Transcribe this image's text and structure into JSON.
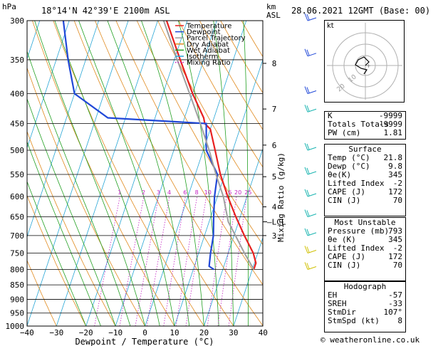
{
  "header": {
    "location": "18°14'N 42°39'E 2100m ASL",
    "datetime": "28.06.2021 12GMT (Base: 00)",
    "left_unit": "hPa",
    "right_unit_1": "km",
    "right_unit_2": "ASL"
  },
  "chart_data": {
    "type": "line",
    "title": "18°14'N 42°39'E 2100m ASL",
    "xlabel": "Dewpoint / Temperature (°C)",
    "ylabel": "hPa",
    "xlim": [
      -40,
      40
    ],
    "ylim": [
      1000,
      300
    ],
    "y_scale": "log",
    "pressure_ticks": [
      300,
      350,
      400,
      450,
      500,
      550,
      600,
      650,
      700,
      750,
      800,
      850,
      900,
      950,
      1000
    ],
    "temp_ticks": [
      -40,
      -30,
      -20,
      -10,
      0,
      10,
      20,
      30,
      40
    ],
    "km_ticks": [
      {
        "p": 355,
        "label": "8"
      },
      {
        "p": 425,
        "label": "7"
      },
      {
        "p": 490,
        "label": "6"
      },
      {
        "p": 555,
        "label": "5"
      },
      {
        "p": 625,
        "label": "4"
      },
      {
        "p": 700,
        "label": "3"
      }
    ],
    "lcl": {
      "p": 663,
      "label": "LCL"
    },
    "mixing_ratio_axis_label": "Mixing Ratio (g/kg)",
    "mixing_ratio_values": [
      1,
      2,
      3,
      4,
      6,
      8,
      10,
      16,
      20,
      25
    ],
    "series": [
      {
        "name": "Temperature",
        "color": "#e82020",
        "points": [
          [
            800,
            30.5
          ],
          [
            780,
            30.5
          ],
          [
            750,
            28.5
          ],
          [
            700,
            23.5
          ],
          [
            650,
            18.5
          ],
          [
            600,
            13.5
          ],
          [
            550,
            8.5
          ],
          [
            500,
            4.0
          ],
          [
            460,
            0.0
          ],
          [
            450,
            -2.5
          ],
          [
            440,
            -3.5
          ],
          [
            400,
            -10.0
          ],
          [
            350,
            -18.0
          ],
          [
            300,
            -27.0
          ]
        ]
      },
      {
        "name": "Dewpoint",
        "color": "#2048d8",
        "points": [
          [
            800,
            17.0
          ],
          [
            790,
            15.0
          ],
          [
            750,
            14.0
          ],
          [
            700,
            13.0
          ],
          [
            650,
            11.0
          ],
          [
            600,
            9.0
          ],
          [
            550,
            7.5
          ],
          [
            500,
            1.0
          ],
          [
            450,
            -2.0
          ],
          [
            440,
            -36.0
          ],
          [
            400,
            -50.0
          ],
          [
            350,
            -56.0
          ],
          [
            300,
            -62.0
          ]
        ]
      },
      {
        "name": "Parcel Trajectory",
        "color": "#a0a0a0",
        "points": [
          [
            800,
            30.5
          ],
          [
            750,
            25.5
          ],
          [
            700,
            20.5
          ],
          [
            663,
            16.5
          ],
          [
            600,
            12.0
          ],
          [
            550,
            7.0
          ],
          [
            500,
            2.0
          ],
          [
            450,
            -4.0
          ],
          [
            400,
            -11.0
          ],
          [
            350,
            -19.0
          ],
          [
            300,
            -28.0
          ]
        ]
      }
    ],
    "legend": {
      "placement": "top-left",
      "entries": [
        {
          "name": "Temperature",
          "color": "#e82020",
          "style": "solid"
        },
        {
          "name": "Dewpoint",
          "color": "#2048d8",
          "style": "solid"
        },
        {
          "name": "Parcel Trajectory",
          "color": "#a0a0a0",
          "style": "solid"
        },
        {
          "name": "Dry Adiabat",
          "color": "#e08a1e",
          "style": "solid"
        },
        {
          "name": "Wet Adiabat",
          "color": "#22a022",
          "style": "solid"
        },
        {
          "name": "Isotherm",
          "color": "#27a6d6",
          "style": "solid"
        },
        {
          "name": "Mixing Ratio",
          "color": "#c21fc2",
          "style": "dotted"
        }
      ]
    },
    "wind_barbs_pressures": [
      300,
      345,
      400,
      430,
      500,
      550,
      600,
      650,
      700,
      750,
      800
    ]
  },
  "hodograph": {
    "label": "kt",
    "ring_labels": [
      "10",
      "20"
    ]
  },
  "indices": {
    "rows": [
      {
        "label": "K",
        "value": "-9999"
      },
      {
        "label": "Totals Totals",
        "value": "-9999"
      },
      {
        "label": "PW (cm)",
        "value": "1.81"
      }
    ]
  },
  "surface": {
    "title": "Surface",
    "rows": [
      {
        "label": "Temp (°C)",
        "value": "21.8"
      },
      {
        "label": "Dewp (°C)",
        "value": "9.8"
      },
      {
        "label": "θe(K)",
        "value": "345"
      },
      {
        "label": "Lifted Index",
        "value": "-2"
      },
      {
        "label": "CAPE (J)",
        "value": "172"
      },
      {
        "label": "CIN (J)",
        "value": "70"
      }
    ]
  },
  "most_unstable": {
    "title": "Most Unstable",
    "rows": [
      {
        "label": "Pressure (mb)",
        "value": "793"
      },
      {
        "label": "θe (K)",
        "value": "345"
      },
      {
        "label": "Lifted Index",
        "value": "-2"
      },
      {
        "label": "CAPE (J)",
        "value": "172"
      },
      {
        "label": "CIN (J)",
        "value": "70"
      }
    ]
  },
  "hodo_params": {
    "title": "Hodograph",
    "rows": [
      {
        "label": "EH",
        "value": "-57"
      },
      {
        "label": "SREH",
        "value": "-33"
      },
      {
        "label": "StmDir",
        "value": "107°"
      },
      {
        "label": "StmSpd (kt)",
        "value": "8"
      }
    ]
  },
  "footer": {
    "copyright": "© weatheronline.co.uk"
  },
  "colors": {
    "temperature": "#e82020",
    "dewpoint": "#2048d8",
    "parcel": "#a0a0a0",
    "dry_adiabat": "#e08a1e",
    "wet_adiabat": "#22a022",
    "isotherm": "#27a6d6",
    "mixing_ratio": "#c21fc2",
    "barb": "#18b4b0"
  }
}
